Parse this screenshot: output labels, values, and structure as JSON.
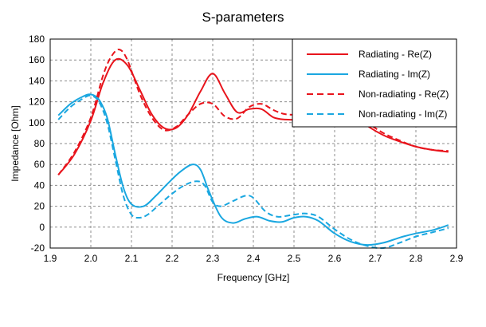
{
  "chart_data": {
    "type": "line",
    "title": "S-parameters",
    "xlabel": "Frequency [GHz]",
    "ylabel": "Impedance [Ohm]",
    "xlim": [
      1.9,
      2.9
    ],
    "ylim": [
      -20,
      180
    ],
    "xticks": [
      1.9,
      2.0,
      2.1,
      2.2,
      2.3,
      2.4,
      2.5,
      2.6,
      2.7,
      2.8,
      2.9
    ],
    "xtick_labels": [
      "1.9",
      "2.0",
      "2.1",
      "2.2",
      "2.3",
      "2.4",
      "2.5",
      "2.6",
      "2.7",
      "2.8",
      "2.9"
    ],
    "yticks": [
      -20,
      0,
      20,
      40,
      60,
      80,
      100,
      120,
      140,
      160,
      180
    ],
    "ytick_labels": [
      "-20",
      "0",
      "20",
      "40",
      "60",
      "80",
      "100",
      "120",
      "140",
      "160",
      "180"
    ],
    "grid": true,
    "legend_position": "top-right",
    "series": [
      {
        "name": "Radiating - Re(Z)",
        "color": "#e8141c",
        "dash": "solid",
        "x": [
          1.92,
          1.96,
          2.0,
          2.03,
          2.06,
          2.09,
          2.12,
          2.15,
          2.18,
          2.21,
          2.24,
          2.27,
          2.3,
          2.33,
          2.36,
          2.39,
          2.42,
          2.45,
          2.48,
          2.52,
          2.56,
          2.6,
          2.64,
          2.68,
          2.72,
          2.76,
          2.8,
          2.84,
          2.88
        ],
        "y": [
          50,
          70,
          102,
          138,
          160,
          155,
          132,
          108,
          95,
          95,
          108,
          130,
          147,
          128,
          110,
          113,
          113,
          105,
          103,
          103,
          106,
          110,
          108,
          97,
          88,
          82,
          77,
          74,
          72
        ]
      },
      {
        "name": "Radiating - Im(Z)",
        "color": "#1aa7e0",
        "dash": "solid",
        "x": [
          1.92,
          1.95,
          1.98,
          2.0,
          2.02,
          2.04,
          2.06,
          2.08,
          2.1,
          2.13,
          2.16,
          2.19,
          2.22,
          2.25,
          2.27,
          2.29,
          2.32,
          2.35,
          2.38,
          2.41,
          2.44,
          2.47,
          2.5,
          2.53,
          2.56,
          2.6,
          2.64,
          2.68,
          2.72,
          2.76,
          2.8,
          2.84,
          2.88
        ],
        "y": [
          107,
          118,
          125,
          127,
          122,
          105,
          70,
          38,
          22,
          20,
          30,
          42,
          53,
          60,
          55,
          35,
          10,
          4,
          8,
          10,
          6,
          5,
          9,
          10,
          6,
          -6,
          -14,
          -17,
          -15,
          -10,
          -6,
          -3,
          2
        ]
      },
      {
        "name": "Non-radiating - Re(Z)",
        "color": "#e8141c",
        "dash": "dashed",
        "x": [
          1.92,
          1.96,
          2.0,
          2.03,
          2.05,
          2.07,
          2.09,
          2.12,
          2.15,
          2.18,
          2.21,
          2.24,
          2.27,
          2.3,
          2.33,
          2.36,
          2.39,
          2.42,
          2.45,
          2.48,
          2.52,
          2.56,
          2.6,
          2.64,
          2.68,
          2.72,
          2.76,
          2.8,
          2.84,
          2.88
        ],
        "y": [
          50,
          72,
          105,
          145,
          163,
          170,
          160,
          128,
          105,
          93,
          96,
          108,
          118,
          118,
          106,
          104,
          115,
          118,
          112,
          108,
          108,
          110,
          113,
          110,
          100,
          90,
          83,
          77,
          74,
          73
        ]
      },
      {
        "name": "Non-radiating - Im(Z)",
        "color": "#1aa7e0",
        "dash": "dashed",
        "x": [
          1.92,
          1.95,
          1.98,
          2.0,
          2.02,
          2.04,
          2.06,
          2.08,
          2.1,
          2.12,
          2.14,
          2.17,
          2.2,
          2.23,
          2.26,
          2.28,
          2.3,
          2.32,
          2.35,
          2.38,
          2.4,
          2.43,
          2.46,
          2.5,
          2.53,
          2.56,
          2.6,
          2.64,
          2.68,
          2.72,
          2.76,
          2.8,
          2.84,
          2.88
        ],
        "y": [
          103,
          115,
          123,
          126,
          120,
          100,
          65,
          30,
          12,
          9,
          12,
          22,
          32,
          40,
          44,
          40,
          24,
          20,
          25,
          30,
          28,
          15,
          10,
          12,
          13,
          10,
          -2,
          -12,
          -18,
          -20,
          -15,
          -9,
          -5,
          -1
        ]
      }
    ]
  }
}
